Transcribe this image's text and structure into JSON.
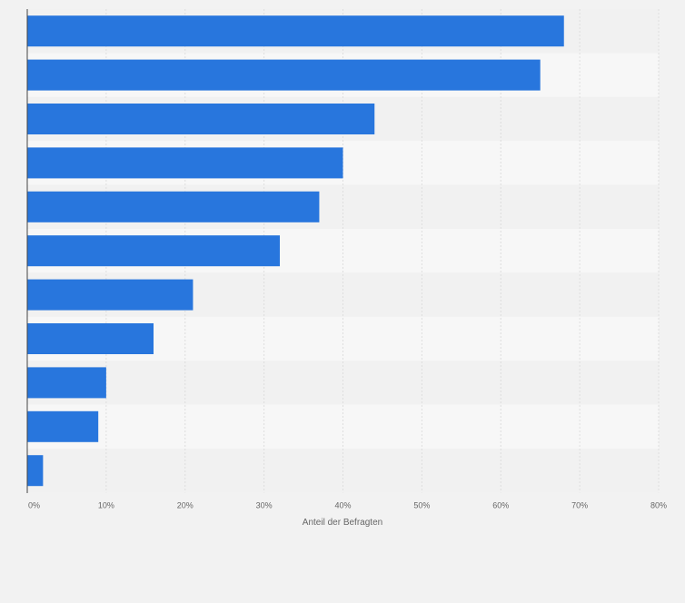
{
  "chart_data": {
    "type": "bar",
    "orientation": "horizontal",
    "categories": [
      "",
      "",
      "",
      "",
      "",
      "",
      "",
      "",
      "",
      "",
      ""
    ],
    "values": [
      68,
      65,
      44,
      40,
      37,
      32,
      21,
      16,
      10,
      9,
      2
    ],
    "xlabel": "Anteil der Befragten",
    "ylabel": "",
    "xlim": [
      0,
      80
    ],
    "ticks": [
      0,
      10,
      20,
      30,
      40,
      50,
      60,
      70,
      80
    ],
    "tick_labels": [
      "0%",
      "10%",
      "20%",
      "30%",
      "40%",
      "50%",
      "60%",
      "70%",
      "80%"
    ],
    "grid": true,
    "legend": "none",
    "colors": {
      "bar": "#2876dd",
      "band_light": "#f7f7f7",
      "band_dark": "#f1f1f1",
      "page_background": "#f2f2f2",
      "grid": "#dedede",
      "axis": "#444444",
      "tick_text": "#666666"
    }
  }
}
